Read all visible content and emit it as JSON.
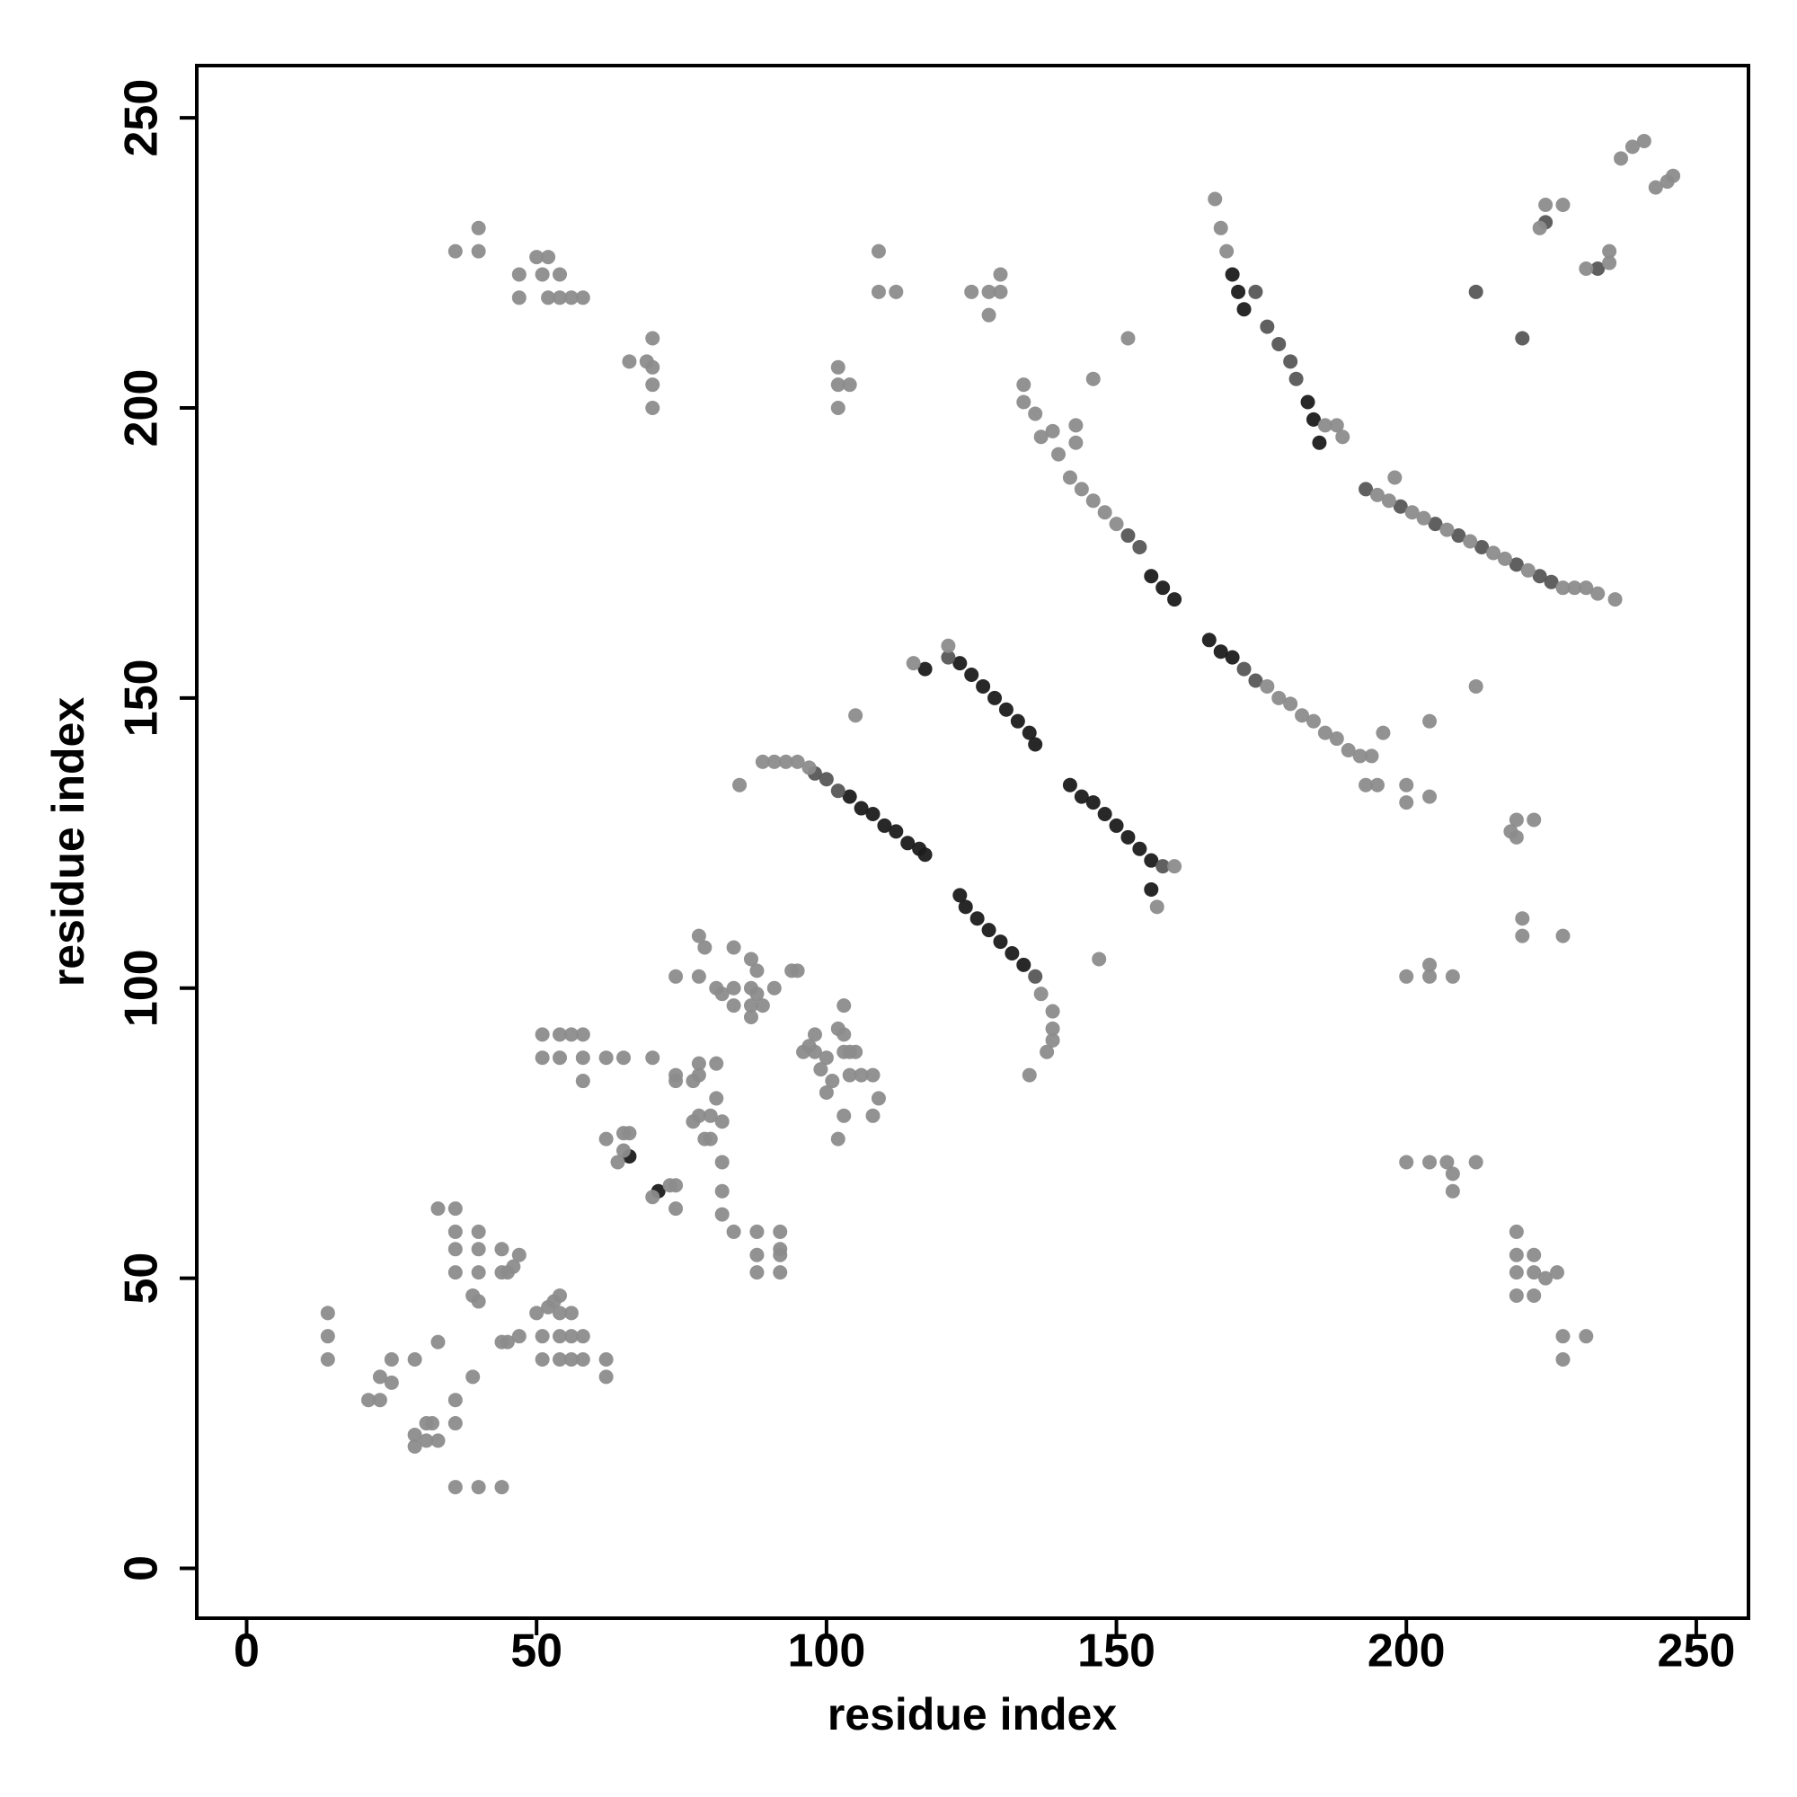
{
  "chart_data": {
    "type": "scatter",
    "xlabel": "residue index",
    "ylabel": "residue index",
    "xlim": [
      -8.6,
      259
    ],
    "ylim": [
      -8.6,
      259
    ],
    "xticks": [
      0,
      50,
      100,
      150,
      200,
      250
    ],
    "yticks": [
      0,
      50,
      100,
      150,
      200,
      250
    ],
    "series": [
      {
        "color": "#1c1c1c",
        "x": [
          104,
          106,
          108,
          110,
          112,
          114,
          116,
          117,
          123,
          125,
          127,
          129,
          131,
          133,
          135,
          136,
          123,
          124,
          126,
          128,
          130,
          132,
          134,
          142,
          144,
          146,
          148,
          150,
          152,
          154,
          156,
          156,
          158,
          160,
          166,
          168,
          170,
          170,
          171,
          172,
          183,
          184,
          185,
          66,
          71,
          117,
          156
        ],
        "values": [
          133,
          131,
          130,
          128,
          127,
          125,
          124,
          123,
          156,
          154,
          152,
          150,
          148,
          146,
          144,
          142,
          116,
          114,
          112,
          110,
          108,
          106,
          104,
          135,
          133,
          132,
          130,
          128,
          126,
          124,
          122,
          171,
          169,
          167,
          160,
          158,
          157,
          223,
          220,
          217,
          201,
          198,
          194,
          71,
          65,
          155,
          117
        ]
      },
      {
        "color": "#575757",
        "x": [
          98,
          100,
          102,
          121,
          136,
          158,
          152,
          154,
          172,
          174,
          174,
          176,
          178,
          180,
          181,
          193,
          199,
          205,
          209,
          213,
          219,
          223,
          225,
          212,
          220,
          233,
          224
        ],
        "values": [
          137,
          136,
          134,
          157,
          102,
          121,
          178,
          176,
          155,
          153,
          220,
          214,
          211,
          208,
          205,
          186,
          183,
          180,
          178,
          176,
          173,
          171,
          170,
          220,
          212,
          224,
          232
        ]
      },
      {
        "color": "#8c8c8c",
        "x": [
          85,
          89,
          91,
          93,
          95,
          97,
          121,
          115,
          137,
          139,
          139,
          139,
          138,
          135,
          160,
          157,
          147
        ],
        "values": [
          135,
          139,
          139,
          139,
          139,
          138,
          159,
          156,
          99,
          96,
          93,
          91,
          89,
          85,
          121,
          114,
          105
        ]
      },
      {
        "color": "#8c8c8c",
        "x": [
          139,
          140,
          142,
          144,
          146,
          148,
          150,
          136,
          134,
          134,
          137,
          143,
          143,
          146,
          152
        ],
        "values": [
          196,
          192,
          188,
          186,
          184,
          182,
          180,
          199,
          201,
          204,
          195,
          194,
          197,
          205,
          212
        ]
      },
      {
        "color": "#8c8c8c",
        "x": [
          176,
          178,
          180,
          182,
          184,
          186,
          188,
          190,
          192,
          194,
          196,
          193,
          195,
          200,
          200,
          204,
          204,
          212,
          105
        ],
        "values": [
          152,
          150,
          149,
          147,
          146,
          144,
          143,
          141,
          140,
          140,
          144,
          135,
          135,
          135,
          132,
          133,
          146,
          152,
          147
        ]
      },
      {
        "color": "#8c8c8c",
        "x": [
          167,
          168,
          169,
          186,
          188,
          189,
          195,
          197,
          201,
          203,
          207,
          211,
          215,
          217,
          221,
          227,
          229,
          231,
          233,
          236,
          198
        ],
        "values": [
          236,
          231,
          227,
          197,
          197,
          195,
          185,
          184,
          182,
          181,
          179,
          177,
          175,
          174,
          172,
          169,
          169,
          169,
          168,
          167,
          188
        ]
      },
      {
        "color": "#8c8c8c",
        "x": [
          224,
          227,
          223,
          231,
          235,
          235,
          237,
          239,
          241,
          243,
          245,
          246
        ],
        "values": [
          235,
          235,
          231,
          224,
          225,
          227,
          243,
          245,
          246,
          238,
          239,
          240
        ]
      },
      {
        "color": "#8c8c8c",
        "x": [
          219,
          222,
          219,
          218,
          220,
          220,
          227,
          200,
          204,
          204,
          208,
          200,
          204,
          207,
          208,
          208,
          212,
          219,
          219,
          219,
          219,
          222,
          222,
          222,
          224,
          226,
          227,
          227,
          231
        ],
        "values": [
          129,
          129,
          126,
          127,
          112,
          109,
          109,
          102,
          102,
          104,
          102,
          70,
          70,
          70,
          68,
          65,
          70,
          58,
          54,
          51,
          47,
          54,
          51,
          47,
          50,
          51,
          40,
          36,
          40
        ]
      },
      {
        "color": "#8c8c8c",
        "x": [
          36,
          40,
          40,
          47,
          47,
          50,
          51,
          52,
          54,
          54,
          56,
          58,
          52,
          66,
          69,
          70,
          70,
          70,
          70,
          102,
          102,
          102,
          104,
          109,
          109,
          112,
          125,
          128,
          128,
          130,
          130
        ],
        "values": [
          227,
          227,
          231,
          223,
          219,
          226,
          223,
          226,
          223,
          219,
          219,
          219,
          219,
          208,
          208,
          212,
          204,
          200,
          207,
          207,
          200,
          204,
          204,
          227,
          220,
          220,
          220,
          220,
          216,
          220,
          223
        ]
      },
      {
        "color": "#8c8c8c",
        "x": [
          14,
          14,
          14,
          21,
          23,
          23,
          25,
          25,
          29,
          29,
          29,
          31,
          31,
          32,
          33,
          33,
          33,
          36,
          36,
          36,
          36,
          36,
          36,
          36,
          39,
          39,
          40,
          40,
          40,
          40,
          40,
          44,
          44,
          44,
          44,
          45,
          46,
          47,
          45,
          47,
          50,
          51,
          51,
          52,
          53,
          54,
          54,
          54,
          54,
          56,
          56,
          56,
          58,
          58,
          62,
          62
        ],
        "values": [
          44,
          40,
          36,
          29,
          33,
          29,
          32,
          36,
          36,
          21,
          23,
          25,
          22,
          25,
          22,
          39,
          62,
          62,
          58,
          55,
          51,
          29,
          25,
          14,
          33,
          47,
          58,
          55,
          51,
          46,
          14,
          14,
          55,
          51,
          39,
          51,
          52,
          54,
          39,
          40,
          44,
          36,
          40,
          45,
          46,
          47,
          44,
          40,
          36,
          44,
          40,
          36,
          40,
          36,
          36,
          33
        ]
      },
      {
        "color": "#8c8c8c",
        "x": [
          51,
          51,
          54,
          54,
          56,
          58,
          58,
          58,
          62,
          65,
          62,
          64,
          65,
          65,
          66,
          70,
          70,
          73,
          74,
          74,
          74,
          74,
          74,
          78,
          77,
          78,
          78,
          78,
          79,
          81,
          81,
          82,
          77,
          78,
          79,
          80,
          80,
          81,
          82,
          82,
          82,
          82,
          84,
          84,
          84,
          84,
          87,
          87,
          87,
          87,
          88,
          88,
          88,
          88,
          88,
          89,
          91,
          92,
          92,
          92,
          92,
          94,
          95,
          96,
          97,
          98,
          98,
          99,
          100,
          100,
          101,
          102,
          103,
          103,
          103,
          102,
          103,
          104,
          104,
          105,
          106,
          108,
          108,
          109
        ],
        "values": [
          92,
          88,
          92,
          88,
          92,
          92,
          88,
          84,
          88,
          88,
          74,
          70,
          72,
          75,
          75,
          88,
          64,
          66,
          62,
          66,
          85,
          84,
          102,
          102,
          84,
          85,
          87,
          109,
          107,
          87,
          100,
          99,
          77,
          78,
          74,
          74,
          78,
          81,
          77,
          70,
          65,
          61,
          107,
          100,
          97,
          58,
          105,
          100,
          97,
          95,
          103,
          99,
          58,
          54,
          51,
          97,
          100,
          55,
          58,
          54,
          51,
          103,
          103,
          89,
          90,
          89,
          92,
          86,
          82,
          88,
          84,
          93,
          97,
          92,
          89,
          74,
          78,
          85,
          89,
          89,
          85,
          85,
          78,
          81
        ]
      }
    ]
  }
}
